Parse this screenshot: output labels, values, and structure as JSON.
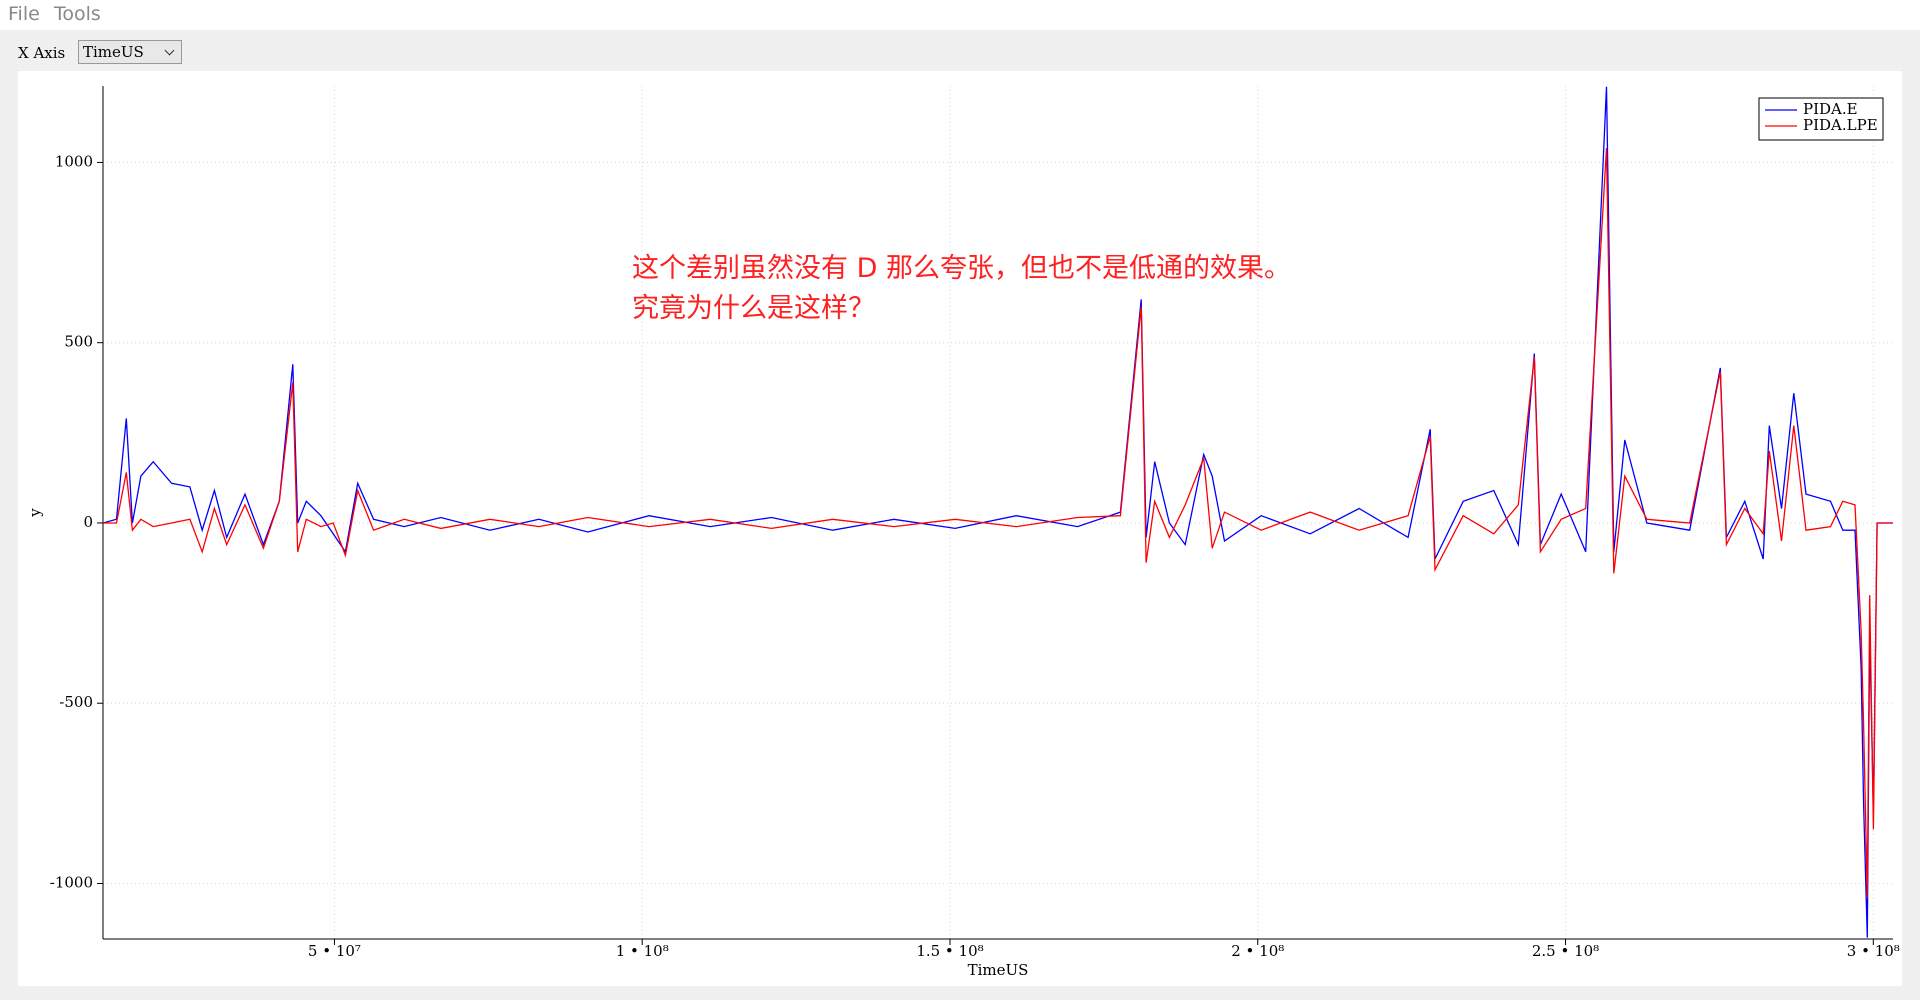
{
  "menu": [
    "File",
    "Tools"
  ],
  "toolbar": {
    "label": "X Axis",
    "x_axis": "TimeUS"
  },
  "chart_data": {
    "type": "line",
    "xlabel": "TimeUS",
    "ylabel": "y",
    "annotation": [
      "这个差别虽然没有 D 那么夸张，但也不是低通的效果。",
      "究竟为什么是这样？"
    ],
    "xlim": [
      12400000,
      303200000
    ],
    "ylim": [
      -1154,
      1212
    ],
    "xticks": [
      {
        "value": 50000000,
        "label": "5 • 10⁷"
      },
      {
        "value": 100000000,
        "label": "1 • 10⁸"
      },
      {
        "value": 150000000,
        "label": "1.5 • 10⁸"
      },
      {
        "value": 200000000,
        "label": "2 • 10⁸"
      },
      {
        "value": 250000000,
        "label": "2.5 • 10⁸"
      },
      {
        "value": 300000000,
        "label": "3 • 10⁸"
      }
    ],
    "yticks": [
      -1000,
      -500,
      0,
      500,
      1000
    ],
    "grid": true,
    "legend": "upper right",
    "x": [
      12400000,
      14590000,
      16180000,
      17170000,
      18560000,
      20550000,
      23540000,
      26520000,
      28510000,
      30500000,
      32490000,
      35470000,
      38460000,
      41040000,
      43230000,
      44030000,
      45420000,
      47800000,
      49790000,
      51780000,
      53770000,
      56360000,
      61330000,
      67300000,
      75250000,
      83210000,
      91160000,
      101110000,
      111050000,
      121000000,
      130940000,
      140890000,
      150830000,
      160780000,
      170720000,
      177680000,
      181070000,
      181860000,
      183250000,
      185640000,
      188220000,
      191210000,
      192600000,
      194590000,
      200560000,
      208520000,
      216470000,
      224430000,
      228010000,
      228800000,
      233380000,
      238350000,
      242330000,
      244920000,
      245910000,
      249290000,
      253270000,
      256650000,
      257840000,
      259630000,
      263210000,
      270170000,
      275140000,
      276140000,
      279120000,
      282110000,
      283100000,
      285090000,
      287080000,
      289070000,
      293050000,
      295040000,
      297030000,
      298020000,
      298420000,
      299020000,
      299410000,
      300010000,
      300610000,
      303190000
    ],
    "series": [
      {
        "name": "PIDA.E",
        "color": "#0000ff",
        "values": [
          0,
          10,
          290,
          0,
          130,
          170,
          110,
          100,
          -20,
          90,
          -40,
          80,
          -60,
          60,
          440,
          0,
          60,
          20,
          -30,
          -80,
          110,
          10,
          -10,
          15,
          -20,
          10,
          -25,
          20,
          -10,
          15,
          -20,
          10,
          -15,
          20,
          -10,
          30,
          620,
          -40,
          170,
          0,
          -60,
          190,
          130,
          -50,
          20,
          -30,
          40,
          -40,
          260,
          -100,
          60,
          90,
          -60,
          470,
          -60,
          80,
          -80,
          1210,
          -80,
          230,
          0,
          -20,
          430,
          -40,
          60,
          -100,
          270,
          40,
          360,
          80,
          60,
          -20,
          -20,
          -400,
          -780,
          -1150,
          -300,
          -800,
          0,
          0
        ]
      },
      {
        "name": "PIDA.LPE",
        "color": "#ff0000",
        "values": [
          0,
          0,
          140,
          -20,
          10,
          -10,
          0,
          10,
          -80,
          40,
          -60,
          50,
          -70,
          60,
          390,
          -80,
          10,
          -10,
          0,
          -90,
          90,
          -20,
          10,
          -15,
          10,
          -10,
          15,
          -10,
          10,
          -15,
          10,
          -10,
          10,
          -10,
          15,
          20,
          600,
          -110,
          60,
          -40,
          50,
          180,
          -70,
          30,
          -20,
          30,
          -20,
          20,
          240,
          -130,
          20,
          -30,
          50,
          460,
          -80,
          10,
          40,
          1040,
          -140,
          130,
          10,
          0,
          420,
          -60,
          40,
          -30,
          200,
          -50,
          270,
          -20,
          -10,
          60,
          50,
          -300,
          -560,
          -1040,
          -200,
          -850,
          0,
          0
        ]
      }
    ]
  }
}
